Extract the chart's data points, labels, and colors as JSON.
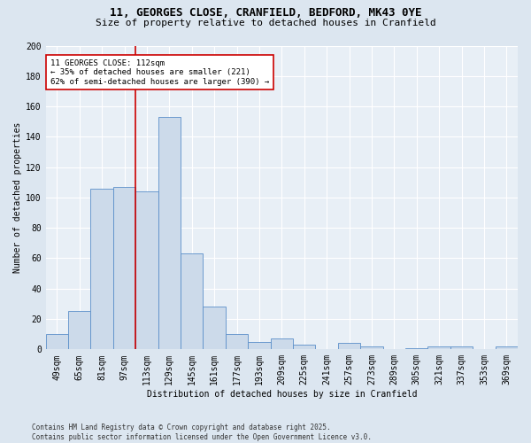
{
  "title": "11, GEORGES CLOSE, CRANFIELD, BEDFORD, MK43 0YE",
  "subtitle": "Size of property relative to detached houses in Cranfield",
  "xlabel": "Distribution of detached houses by size in Cranfield",
  "ylabel": "Number of detached properties",
  "footer": "Contains HM Land Registry data © Crown copyright and database right 2025.\nContains public sector information licensed under the Open Government Licence v3.0.",
  "categories": [
    "49sqm",
    "65sqm",
    "81sqm",
    "97sqm",
    "113sqm",
    "129sqm",
    "145sqm",
    "161sqm",
    "177sqm",
    "193sqm",
    "209sqm",
    "225sqm",
    "241sqm",
    "257sqm",
    "273sqm",
    "289sqm",
    "305sqm",
    "321sqm",
    "337sqm",
    "353sqm",
    "369sqm"
  ],
  "values": [
    10,
    25,
    106,
    107,
    104,
    153,
    63,
    28,
    10,
    5,
    7,
    3,
    0,
    4,
    2,
    0,
    1,
    2,
    2,
    0,
    2
  ],
  "bar_color": "#ccdaea",
  "bar_edge_color": "#5b8fc9",
  "vline_color": "#cc0000",
  "annotation_text": "11 GEORGES CLOSE: 112sqm\n← 35% of detached houses are smaller (221)\n62% of semi-detached houses are larger (390) →",
  "annotation_box_color": "#ffffff",
  "annotation_box_edge": "#cc0000",
  "bg_color": "#dce6f0",
  "plot_bg_color": "#e8eff6",
  "grid_color": "#ffffff",
  "ylim": [
    0,
    200
  ],
  "yticks": [
    0,
    20,
    40,
    60,
    80,
    100,
    120,
    140,
    160,
    180,
    200
  ],
  "title_fontsize": 9,
  "subtitle_fontsize": 8,
  "tick_fontsize": 7,
  "ylabel_fontsize": 7,
  "xlabel_fontsize": 7,
  "footer_fontsize": 5.5
}
